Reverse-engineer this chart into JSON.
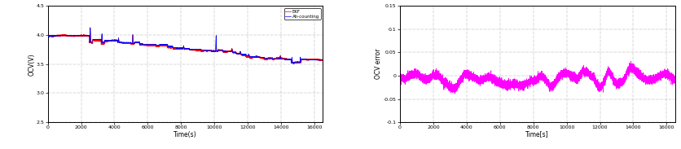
{
  "left_plot": {
    "xlabel": "Time(s)",
    "ylabel": "OCV(V)",
    "xlim": [
      0,
      16500
    ],
    "ylim": [
      2.5,
      4.5
    ],
    "yticks": [
      2.5,
      3.0,
      3.5,
      4.0,
      4.5
    ],
    "xticks": [
      0,
      2000,
      4000,
      6000,
      8000,
      10000,
      12000,
      14000,
      16000
    ],
    "legend": [
      "Ah-counting",
      "EKF"
    ],
    "colors": [
      "#0000ff",
      "#ff0000"
    ],
    "grid_color": "#999999",
    "bg_color": "#ffffff"
  },
  "right_plot": {
    "xlabel": "Time[s]",
    "ylabel": "OCV error",
    "xlim": [
      0,
      16500
    ],
    "ylim": [
      -0.1,
      0.15
    ],
    "yticks": [
      -0.1,
      -0.05,
      0.0,
      0.05,
      0.1,
      0.15
    ],
    "xticks": [
      0,
      2000,
      4000,
      6000,
      8000,
      10000,
      12000,
      14000,
      16000
    ],
    "color": "#ff00ff",
    "grid_color": "#999999",
    "bg_color": "#ffffff"
  }
}
